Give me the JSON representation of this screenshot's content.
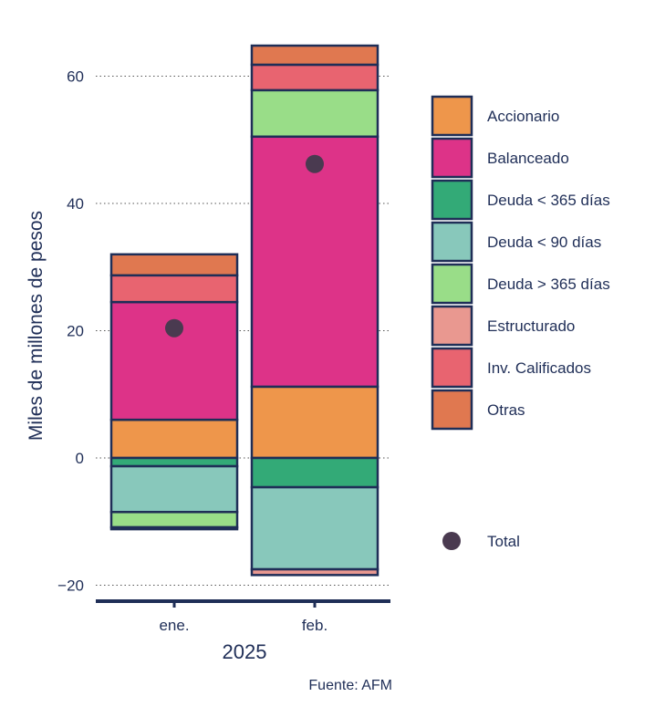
{
  "chart_data": {
    "type": "bar",
    "stacked": true,
    "categories": [
      "ene.",
      "feb."
    ],
    "x_group_label": "2025",
    "ylabel": "Miles de millones de pesos",
    "ylim": [
      -21,
      66
    ],
    "yticks": [
      60,
      40,
      20,
      0,
      -20
    ],
    "ytick_labels": [
      "60",
      "40",
      "20",
      "0",
      "−20"
    ],
    "grid": "horizontal-dotted",
    "legend_position": "right",
    "source": "Fuente: AFM",
    "series": [
      {
        "name": "Accionario",
        "color": "#EE964B",
        "values": [
          6.0,
          11.2
        ]
      },
      {
        "name": "Balanceado",
        "color": "#DD3388",
        "values": [
          18.5,
          39.3
        ]
      },
      {
        "name": "Deuda < 365 días",
        "color": "#33AA77",
        "values": [
          -1.3,
          -4.6
        ]
      },
      {
        "name": "Deuda < 90 días",
        "color": "#88C8BB",
        "values": [
          -7.2,
          -12.9
        ]
      },
      {
        "name": "Deuda > 365 días",
        "color": "#99DD88",
        "values": [
          -2.4,
          7.3
        ]
      },
      {
        "name": "Estructurado",
        "color": "#E99890",
        "values": [
          -0.3,
          -0.9
        ]
      },
      {
        "name": "Inv. Calificados",
        "color": "#E86470",
        "values": [
          4.2,
          4.0
        ]
      },
      {
        "name": "Otras",
        "color": "#E07850",
        "values": [
          3.3,
          3.0
        ]
      }
    ],
    "total": {
      "name": "Total",
      "color": "#4A3A50",
      "values": [
        20.4,
        46.2
      ]
    }
  },
  "colors": {
    "bar_outline": "#1F2E57",
    "axis": "#1F2E57",
    "text": "#1F2E57"
  }
}
